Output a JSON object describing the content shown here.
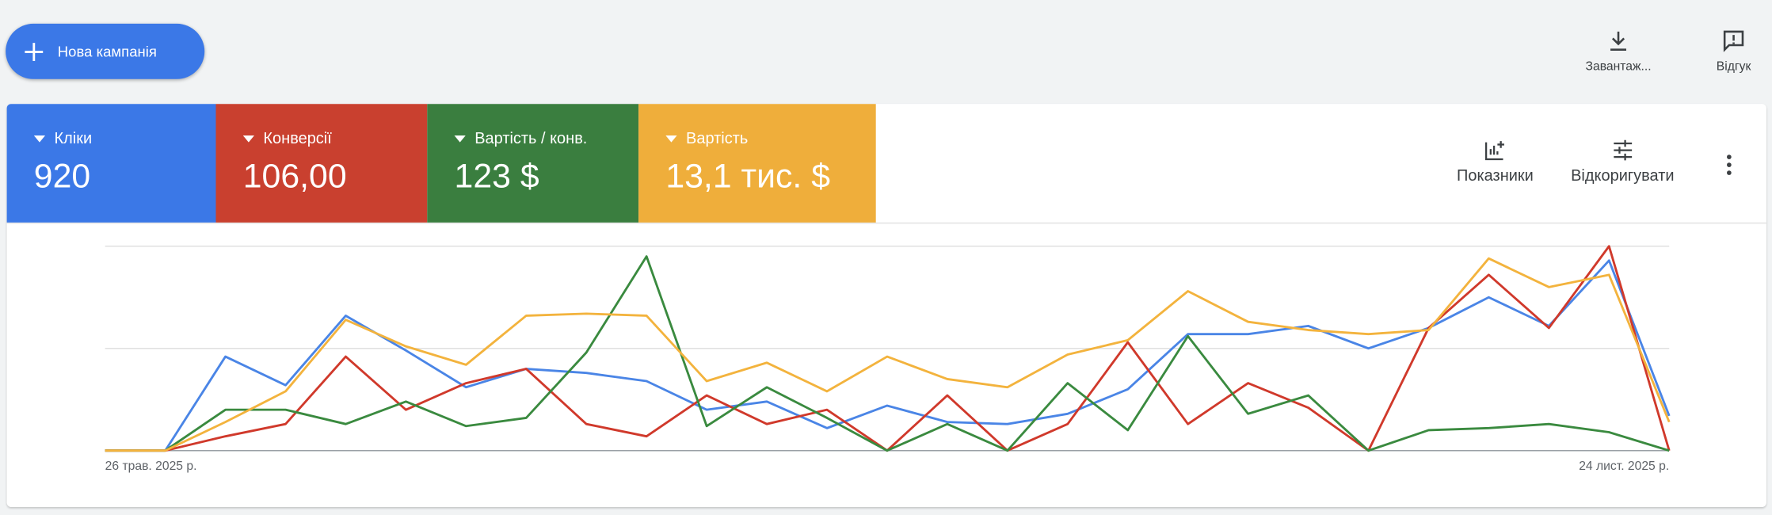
{
  "toolbar": {
    "new_campaign": "Нова кампанія",
    "download": "Завантаж...",
    "feedback": "Відгук"
  },
  "scorecards": [
    {
      "value": "920",
      "color": "#3b78e7"
    },
    {
      "value": "106,00",
      "color": "#c9402f"
    },
    {
      "value": "123 $",
      "color": "#3a7e3f"
    },
    {
      "value": "13,1 тис. $",
      "color": "#efae3b"
    }
  ],
  "chart_actions": {
    "metrics": "Показники",
    "adjust": "Відкоригувати"
  },
  "chart_data": {
    "type": "line",
    "categories": [
      "26 трав. 2025 р.",
      null,
      null,
      null,
      null,
      null,
      null,
      null,
      null,
      null,
      null,
      null,
      null,
      null,
      null,
      null,
      null,
      null,
      null,
      null,
      null,
      null,
      null,
      null,
      null,
      null,
      "24 лист. 2025 р."
    ],
    "ylim": [
      0,
      100
    ],
    "grid": true,
    "series": [
      {
        "name": "Кліки",
        "color": "#4a85e6",
        "values": [
          0,
          0,
          46,
          32,
          66,
          49,
          31,
          40,
          38,
          34,
          20,
          24,
          11,
          22,
          14,
          13,
          18,
          30,
          57,
          57,
          61,
          50,
          60,
          75,
          61,
          93,
          17
        ]
      },
      {
        "name": "Конверсії",
        "color": "#d0392b",
        "values": [
          0,
          0,
          7,
          13,
          46,
          20,
          33,
          40,
          13,
          7,
          27,
          13,
          20,
          0,
          27,
          0,
          13,
          53,
          13,
          33,
          21,
          0,
          60,
          86,
          60,
          100,
          0
        ]
      },
      {
        "name": "Вартість / конв.",
        "color": "#3a8a3f",
        "values": [
          0,
          0,
          20,
          20,
          13,
          24,
          12,
          16,
          48,
          95,
          12,
          31,
          16,
          0,
          13,
          0,
          33,
          10,
          56,
          18,
          27,
          0,
          10,
          11,
          13,
          9,
          0
        ]
      },
      {
        "name": "Вартість",
        "color": "#f3b33d",
        "values": [
          0,
          0,
          14,
          29,
          64,
          51,
          42,
          66,
          67,
          66,
          34,
          43,
          29,
          46,
          35,
          31,
          47,
          54,
          78,
          63,
          59,
          57,
          59,
          94,
          80,
          86,
          14
        ]
      }
    ]
  }
}
